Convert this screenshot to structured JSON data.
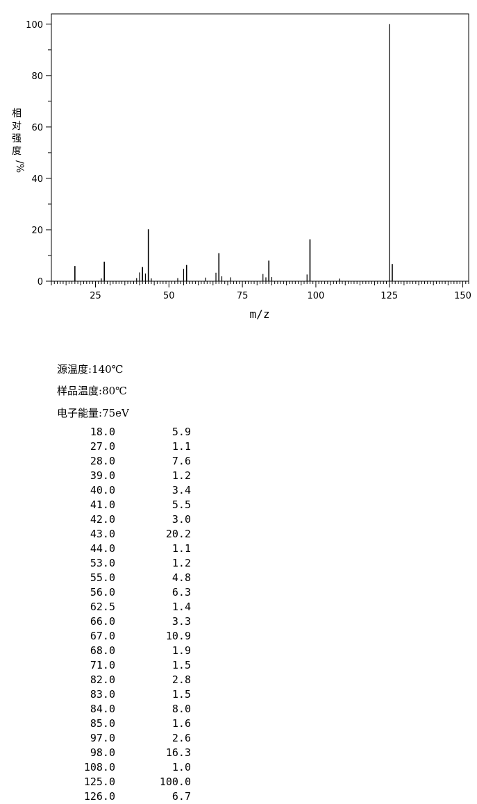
{
  "chart_data": {
    "type": "bar",
    "xlabel": "m/z",
    "ylabel": [
      "相",
      "对",
      "强",
      "度",
      "/%"
    ],
    "xlim": [
      10,
      152
    ],
    "ylim": [
      0,
      104
    ],
    "xticks": [
      25,
      50,
      75,
      100,
      125,
      150
    ],
    "yticks": [
      0,
      20,
      40,
      60,
      80,
      100
    ],
    "grid": false,
    "peaks": [
      {
        "x": 18.0,
        "y": 5.9
      },
      {
        "x": 27.0,
        "y": 1.1
      },
      {
        "x": 28.0,
        "y": 7.6
      },
      {
        "x": 39.0,
        "y": 1.2
      },
      {
        "x": 40.0,
        "y": 3.4
      },
      {
        "x": 41.0,
        "y": 5.5
      },
      {
        "x": 42.0,
        "y": 3.0
      },
      {
        "x": 43.0,
        "y": 20.2
      },
      {
        "x": 44.0,
        "y": 1.1
      },
      {
        "x": 53.0,
        "y": 1.2
      },
      {
        "x": 55.0,
        "y": 4.8
      },
      {
        "x": 56.0,
        "y": 6.3
      },
      {
        "x": 62.5,
        "y": 1.4
      },
      {
        "x": 66.0,
        "y": 3.3
      },
      {
        "x": 67.0,
        "y": 10.9
      },
      {
        "x": 68.0,
        "y": 1.9
      },
      {
        "x": 71.0,
        "y": 1.5
      },
      {
        "x": 82.0,
        "y": 2.8
      },
      {
        "x": 83.0,
        "y": 1.5
      },
      {
        "x": 84.0,
        "y": 8.0
      },
      {
        "x": 85.0,
        "y": 1.6
      },
      {
        "x": 97.0,
        "y": 2.6
      },
      {
        "x": 98.0,
        "y": 16.3
      },
      {
        "x": 108.0,
        "y": 1.0
      },
      {
        "x": 125.0,
        "y": 100.0
      },
      {
        "x": 126.0,
        "y": 6.7
      }
    ]
  },
  "conditions": [
    {
      "label": "源温度",
      "value": "140℃"
    },
    {
      "label": "样品温度",
      "value": "80℃"
    },
    {
      "label": "电子能量",
      "value": "75eV"
    }
  ],
  "table": [
    [
      "18.0",
      "5.9"
    ],
    [
      "27.0",
      "1.1"
    ],
    [
      "28.0",
      "7.6"
    ],
    [
      "39.0",
      "1.2"
    ],
    [
      "40.0",
      "3.4"
    ],
    [
      "41.0",
      "5.5"
    ],
    [
      "42.0",
      "3.0"
    ],
    [
      "43.0",
      "20.2"
    ],
    [
      "44.0",
      "1.1"
    ],
    [
      "53.0",
      "1.2"
    ],
    [
      "55.0",
      "4.8"
    ],
    [
      "56.0",
      "6.3"
    ],
    [
      "62.5",
      "1.4"
    ],
    [
      "66.0",
      "3.3"
    ],
    [
      "67.0",
      "10.9"
    ],
    [
      "68.0",
      "1.9"
    ],
    [
      "71.0",
      "1.5"
    ],
    [
      "82.0",
      "2.8"
    ],
    [
      "83.0",
      "1.5"
    ],
    [
      "84.0",
      "8.0"
    ],
    [
      "85.0",
      "1.6"
    ],
    [
      "97.0",
      "2.6"
    ],
    [
      "98.0",
      "16.3"
    ],
    [
      "108.0",
      "1.0"
    ],
    [
      "125.0",
      "100.0"
    ],
    [
      "126.0",
      "6.7"
    ]
  ]
}
